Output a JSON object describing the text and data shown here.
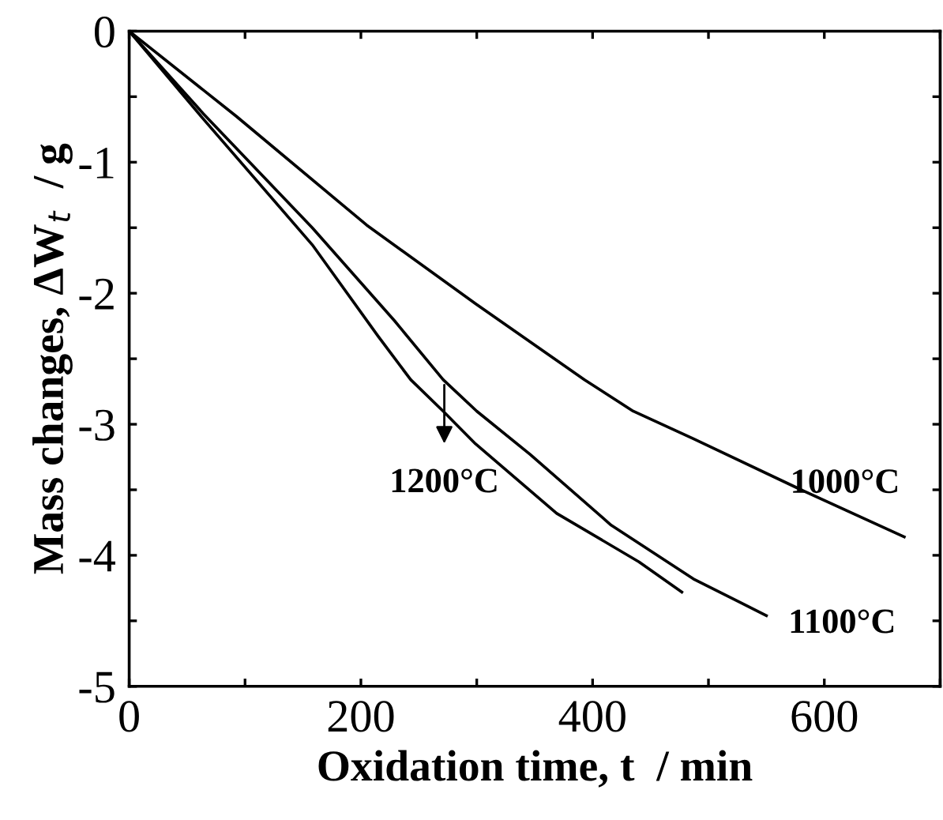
{
  "chart_data": {
    "type": "line",
    "xlabel": "Oxidation time, t  / min",
    "ylabel": "Mass changes, ΔW$_{t}$  / g",
    "xlim": [
      0,
      700
    ],
    "ylim": [
      -5,
      0
    ],
    "xticks": [
      0,
      {
        "value": 100,
        "label": null
      },
      200,
      {
        "value": 300,
        "label": null
      },
      400,
      {
        "value": 500,
        "label": null
      },
      600,
      {
        "value": 700,
        "label": null
      }
    ],
    "yticks": [
      {
        "value": -5,
        "label": "-5"
      },
      {
        "value": -4.5,
        "label": null
      },
      {
        "value": -4,
        "label": "-4"
      },
      {
        "value": -3.5,
        "label": null
      },
      {
        "value": -3,
        "label": "-3"
      },
      {
        "value": -2.5,
        "label": null
      },
      {
        "value": -2,
        "label": "-2"
      },
      {
        "value": -1.5,
        "label": null
      },
      {
        "value": -1,
        "label": "-1"
      },
      {
        "value": -0.5,
        "label": null
      },
      0
    ],
    "grid": false,
    "marker": "none",
    "line_style": "solid",
    "series": [
      {
        "color": "#000000",
        "x": [
          0,
          92.5,
          205,
          299,
          393,
          435,
          487,
          580,
          669
        ],
        "values": [
          0,
          -0.65,
          -1.48,
          -2.08,
          -2.66,
          -2.9,
          -3.11,
          -3.5,
          -3.86
        ]
      },
      {
        "color": "#000000",
        "x": [
          0,
          64,
          158,
          229,
          271,
          300,
          346,
          416,
          487,
          550
        ],
        "values": [
          0,
          -0.63,
          -1.5,
          -2.21,
          -2.66,
          -2.9,
          -3.23,
          -3.77,
          -4.18,
          -4.46
        ]
      },
      {
        "color": "#000000",
        "x": [
          0,
          64,
          158,
          215,
          243,
          271,
          299,
          369,
          440,
          477
        ],
        "values": [
          0,
          -0.67,
          -1.63,
          -2.33,
          -2.66,
          -2.9,
          -3.15,
          -3.68,
          -4.05,
          -4.28
        ]
      }
    ],
    "annotations": [
      {
        "text": "1000°C",
        "x": 669,
        "y": -3.86
      },
      {
        "text": "1100°C",
        "x": 550,
        "y": -4.46
      },
      {
        "text": "1200°C",
        "x": 272,
        "y": -2.7
      }
    ]
  }
}
